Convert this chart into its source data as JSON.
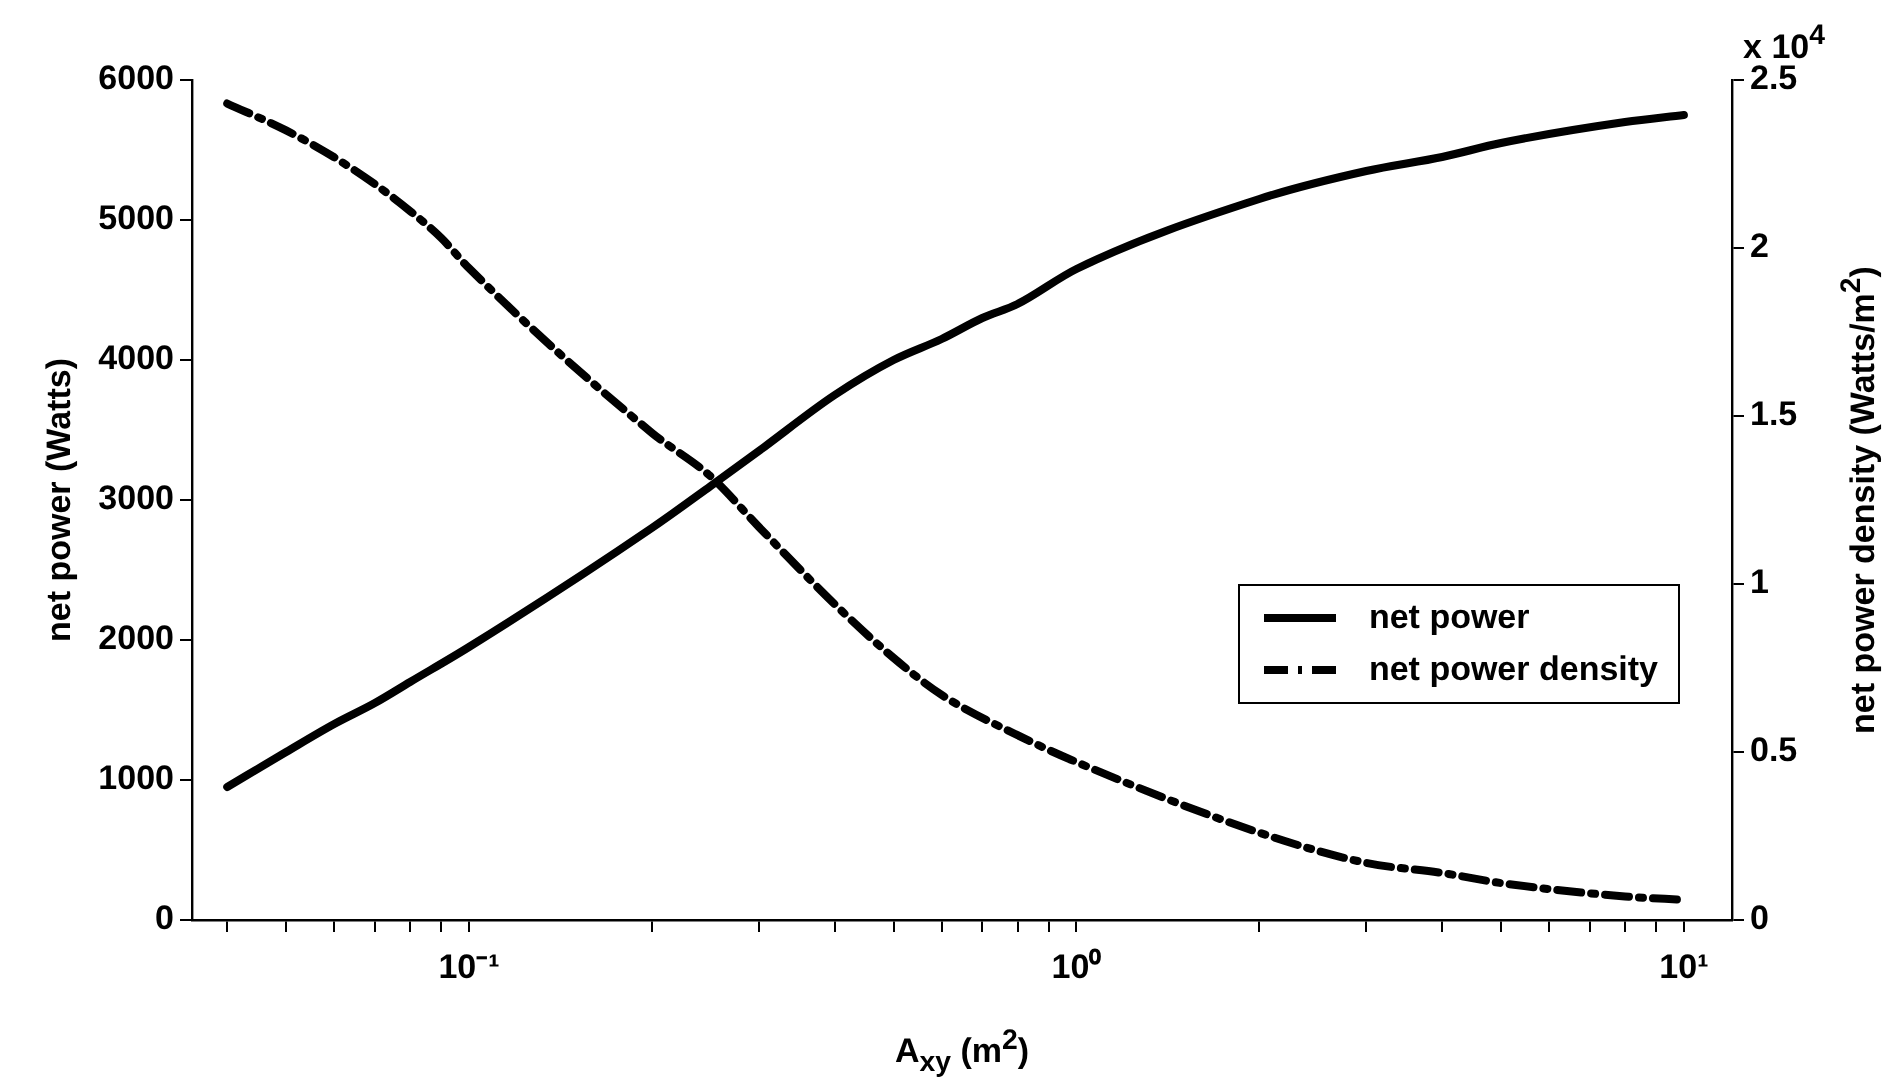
{
  "chart_data": {
    "type": "line",
    "xlabel": "A$_{xy}$ (m$^{2}$)",
    "ylabel": "net power (Watts)",
    "y2label": "net power density (Watts/m$^{2}$)",
    "annotations": [
      "x 10$^{4}$"
    ],
    "log": "x",
    "grid": false,
    "legend": "right",
    "marker": "none",
    "xlim": [
      0.035,
      12
    ],
    "xticks": [
      {
        "value": 0.04,
        "label": null
      },
      {
        "value": 0.05,
        "label": null
      },
      {
        "value": 0.06,
        "label": null
      },
      {
        "value": 0.07,
        "label": null
      },
      {
        "value": 0.08,
        "label": null
      },
      {
        "value": 0.09,
        "label": null
      },
      {
        "value": 0.1,
        "label": "10⁻¹"
      },
      {
        "value": 0.2,
        "label": null
      },
      {
        "value": 0.3,
        "label": null
      },
      {
        "value": 0.4,
        "label": null
      },
      {
        "value": 0.5,
        "label": null
      },
      {
        "value": 0.6,
        "label": null
      },
      {
        "value": 0.7,
        "label": null
      },
      {
        "value": 0.8,
        "label": null
      },
      {
        "value": 0.9,
        "label": null
      },
      {
        "value": 1,
        "label": "10⁰"
      },
      {
        "value": 2,
        "label": null
      },
      {
        "value": 3,
        "label": null
      },
      {
        "value": 4,
        "label": null
      },
      {
        "value": 5,
        "label": null
      },
      {
        "value": 6,
        "label": null
      },
      {
        "value": 7,
        "label": null
      },
      {
        "value": 8,
        "label": null
      },
      {
        "value": 9,
        "label": null
      },
      {
        "value": 10,
        "label": "10¹"
      }
    ],
    "ylim": [
      0,
      6000
    ],
    "yticks": [
      0,
      1000,
      2000,
      3000,
      4000,
      5000,
      6000
    ],
    "y2lim": [
      0,
      2.5
    ],
    "y2ticks": [
      0,
      0.5,
      1,
      1.5,
      2,
      2.5
    ],
    "series": [
      {
        "name": "net power",
        "color": "#000000",
        "line_style": "solid",
        "x": [
          0.04,
          0.05,
          0.06,
          0.07,
          0.08,
          0.1,
          0.2,
          0.25,
          0.3,
          0.4,
          0.5,
          0.6,
          0.7,
          0.8,
          1,
          2,
          3,
          4,
          5,
          8,
          10
        ],
        "values": [
          950,
          1200,
          1400,
          1550,
          1700,
          1950,
          2800,
          3100,
          3350,
          3750,
          4000,
          4150,
          4300,
          4400,
          4650,
          5150,
          5350,
          5450,
          5550,
          5700,
          5750
        ]
      },
      {
        "name": "net power density",
        "color": "#000000",
        "line_style": "dashdot",
        "axis": "y2",
        "x": [
          0.04,
          0.05,
          0.06,
          0.07,
          0.08,
          0.09,
          0.1,
          0.2,
          0.25,
          0.3,
          0.4,
          0.5,
          0.6,
          0.8,
          1,
          2,
          3,
          4,
          5,
          8,
          10
        ],
        "values": [
          2.43,
          2.35,
          2.27,
          2.19,
          2.11,
          2.03,
          1.94,
          1.45,
          1.32,
          1.17,
          0.94,
          0.78,
          0.67,
          0.55,
          0.47,
          0.26,
          0.17,
          0.14,
          0.11,
          0.07,
          0.06
        ]
      }
    ]
  }
}
